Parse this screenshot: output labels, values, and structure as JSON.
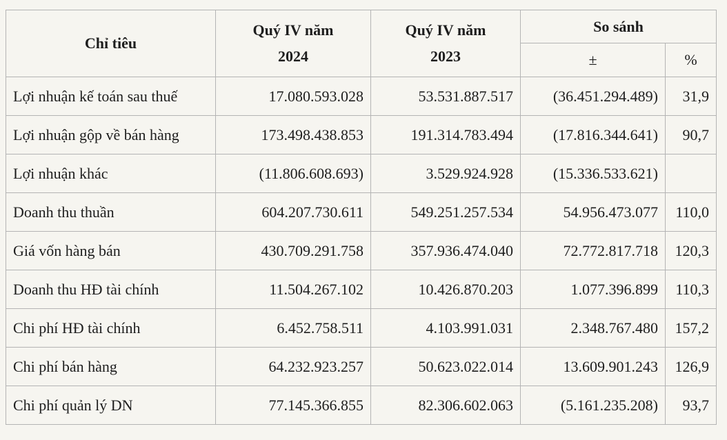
{
  "table": {
    "headers": {
      "indicator": "Chỉ tiêu",
      "q4_2024_line1": "Quý IV năm",
      "q4_2024_line2": "2024",
      "q4_2023_line1": "Quý IV năm",
      "q4_2023_line2": "2023",
      "compare": "So sánh",
      "diff": "±",
      "percent": "%"
    },
    "rows": [
      {
        "name": "Lợi nhuận kế toán sau thuế",
        "q2024": "17.080.593.028",
        "q2023": "53.531.887.517",
        "diff": "(36.451.294.489)",
        "pct": "31,9"
      },
      {
        "name": "Lợi nhuận gộp về bán hàng",
        "q2024": "173.498.438.853",
        "q2023": "191.314.783.494",
        "diff": "(17.816.344.641)",
        "pct": "90,7"
      },
      {
        "name": "Lợi nhuận khác",
        "q2024": "(11.806.608.693)",
        "q2023": "3.529.924.928",
        "diff": "(15.336.533.621)",
        "pct": ""
      },
      {
        "name": "Doanh thu thuần",
        "q2024": "604.207.730.611",
        "q2023": "549.251.257.534",
        "diff": "54.956.473.077",
        "pct": "110,0"
      },
      {
        "name": "Giá vốn hàng bán",
        "q2024": "430.709.291.758",
        "q2023": "357.936.474.040",
        "diff": "72.772.817.718",
        "pct": "120,3"
      },
      {
        "name": "Doanh thu HĐ tài chính",
        "q2024": "11.504.267.102",
        "q2023": "10.426.870.203",
        "diff": "1.077.396.899",
        "pct": "110,3"
      },
      {
        "name": "Chi phí HĐ tài chính",
        "q2024": "6.452.758.511",
        "q2023": "4.103.991.031",
        "diff": "2.348.767.480",
        "pct": "157,2"
      },
      {
        "name": "Chi phí bán hàng",
        "q2024": "64.232.923.257",
        "q2023": "50.623.022.014",
        "diff": "13.609.901.243",
        "pct": "126,9"
      },
      {
        "name": "Chi phí quản lý DN",
        "q2024": "77.145.366.855",
        "q2023": "82.306.602.063",
        "diff": "(5.161.235.208)",
        "pct": "93,7"
      }
    ]
  }
}
